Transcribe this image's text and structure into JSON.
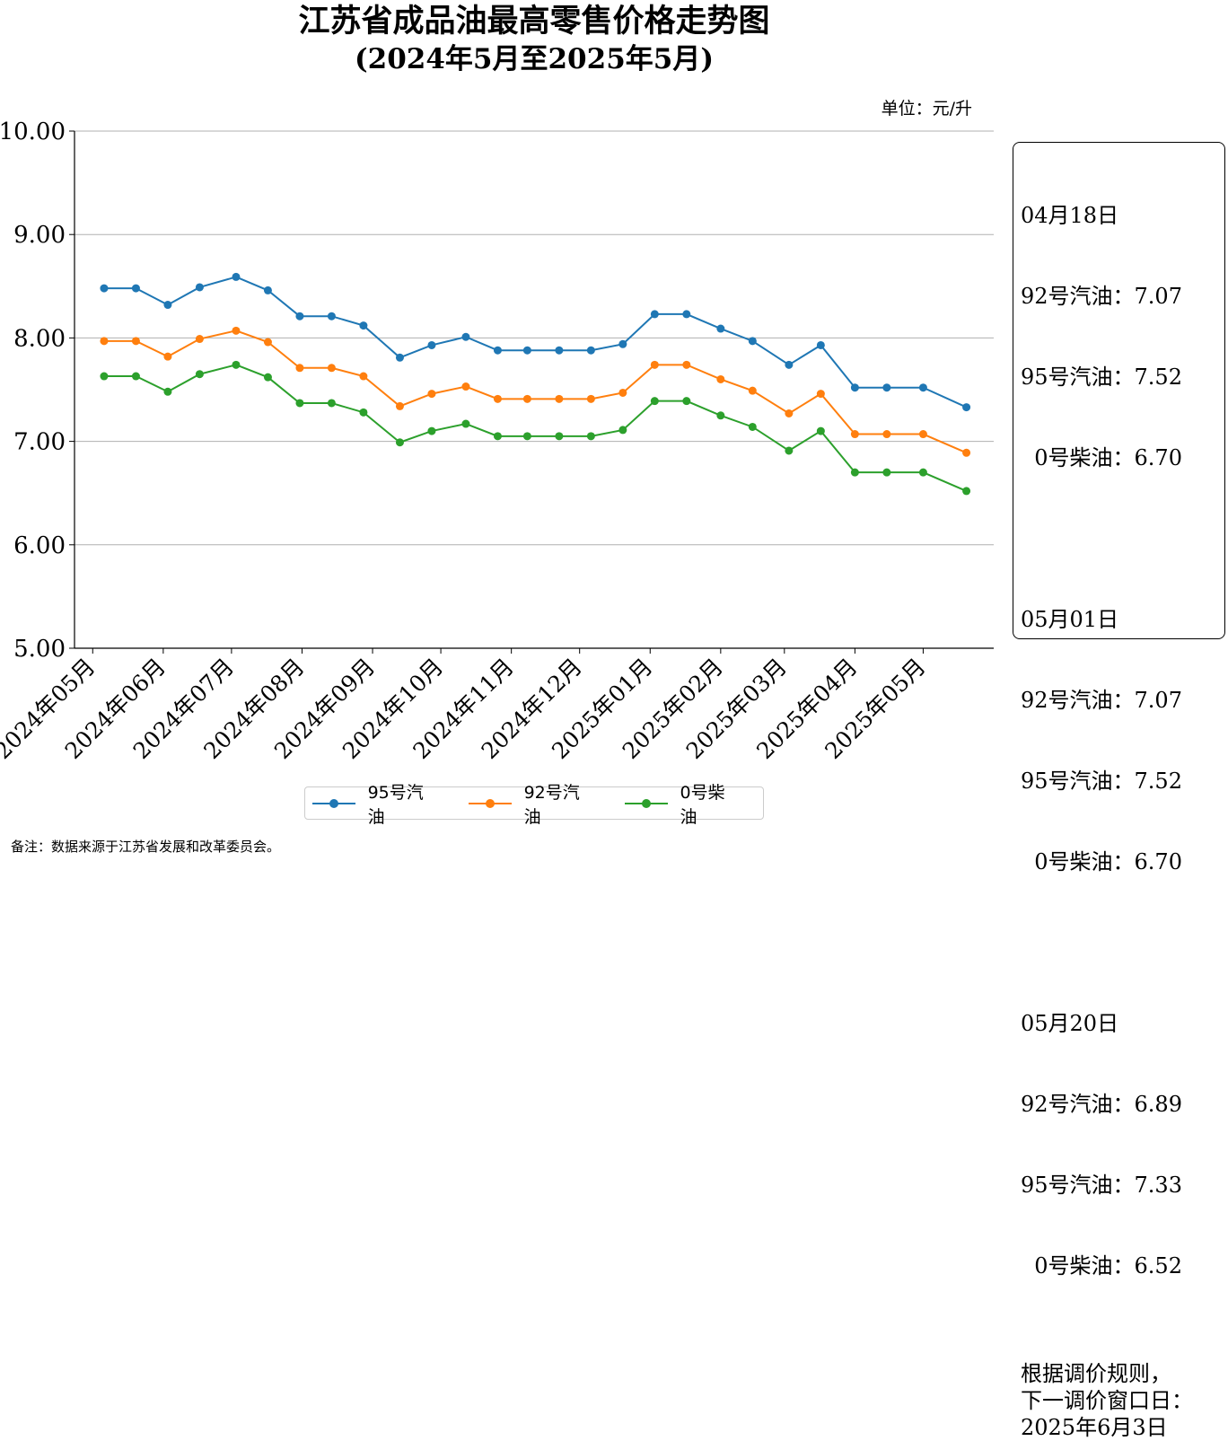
{
  "chart_data": {
    "type": "line",
    "title": "江苏省成品油最高零售价格走势图",
    "subtitle": "(2024年5月至2025年5月)",
    "unit_label": "单位：元/升",
    "ylim": [
      5.0,
      10.0
    ],
    "yticks": [
      "5.00",
      "6.00",
      "7.00",
      "8.00",
      "9.00",
      "10.00"
    ],
    "grid": true,
    "month_labels": [
      "2024年05月",
      "2024年06月",
      "2024年07月",
      "2024年08月",
      "2024年09月",
      "2024年10月",
      "2024年11月",
      "2024年12月",
      "2025年01月",
      "2025年02月",
      "2025年03月",
      "2025年04月",
      "2025年05月"
    ],
    "x": [
      "2024-05-06",
      "2024-05-20",
      "2024-06-03",
      "2024-06-17",
      "2024-07-03",
      "2024-07-17",
      "2024-07-31",
      "2024-08-14",
      "2024-08-28",
      "2024-09-13",
      "2024-09-27",
      "2024-10-12",
      "2024-10-26",
      "2024-11-08",
      "2024-11-22",
      "2024-12-06",
      "2024-12-20",
      "2025-01-03",
      "2025-01-17",
      "2025-02-01",
      "2025-02-15",
      "2025-03-03",
      "2025-03-17",
      "2025-04-01",
      "2025-04-15",
      "2025-05-01",
      "2025-05-20"
    ],
    "series": [
      {
        "name": "95号汽油",
        "color": "#1f77b4",
        "values": [
          8.48,
          8.48,
          8.32,
          8.49,
          8.59,
          8.46,
          8.21,
          8.21,
          8.12,
          7.81,
          7.93,
          8.01,
          7.88,
          7.88,
          7.88,
          7.88,
          7.94,
          8.23,
          8.23,
          8.09,
          7.97,
          7.74,
          7.93,
          7.52,
          7.52,
          7.52,
          7.33
        ]
      },
      {
        "name": "92号汽油",
        "color": "#ff7f0e",
        "values": [
          7.97,
          7.97,
          7.82,
          7.99,
          8.07,
          7.96,
          7.71,
          7.71,
          7.63,
          7.34,
          7.46,
          7.53,
          7.41,
          7.41,
          7.41,
          7.41,
          7.47,
          7.74,
          7.74,
          7.6,
          7.49,
          7.27,
          7.46,
          7.07,
          7.07,
          7.07,
          6.89
        ]
      },
      {
        "name": "0号柴油",
        "color": "#2ca02c",
        "values": [
          7.63,
          7.63,
          7.48,
          7.65,
          7.74,
          7.62,
          7.37,
          7.37,
          7.28,
          6.99,
          7.1,
          7.17,
          7.05,
          7.05,
          7.05,
          7.05,
          7.11,
          7.39,
          7.39,
          7.25,
          7.14,
          6.91,
          7.1,
          6.7,
          6.7,
          6.7,
          6.52
        ]
      }
    ]
  },
  "info_box": {
    "blocks": [
      {
        "date": "04月18日",
        "l92": "92号汽油：7.07",
        "l95": "95号汽油：7.52",
        "l0": "  0号柴油：6.70"
      },
      {
        "date": "05月01日",
        "l92": "92号汽油：7.07",
        "l95": "95号汽油：7.52",
        "l0": "  0号柴油：6.70"
      },
      {
        "date": "05月20日",
        "l92": "92号汽油：6.89",
        "l95": "95号汽油：7.33",
        "l0": "  0号柴油：6.52"
      }
    ],
    "rule_line1": "根据调价规则，",
    "rule_line2": "下一调价窗口日：",
    "rule_line3": "2025年6月3日"
  },
  "legend": {
    "items": [
      "95号汽油",
      "92号汽油",
      "0号柴油"
    ]
  },
  "footnote": "备注：数据来源于江苏省发展和改革委员会。"
}
